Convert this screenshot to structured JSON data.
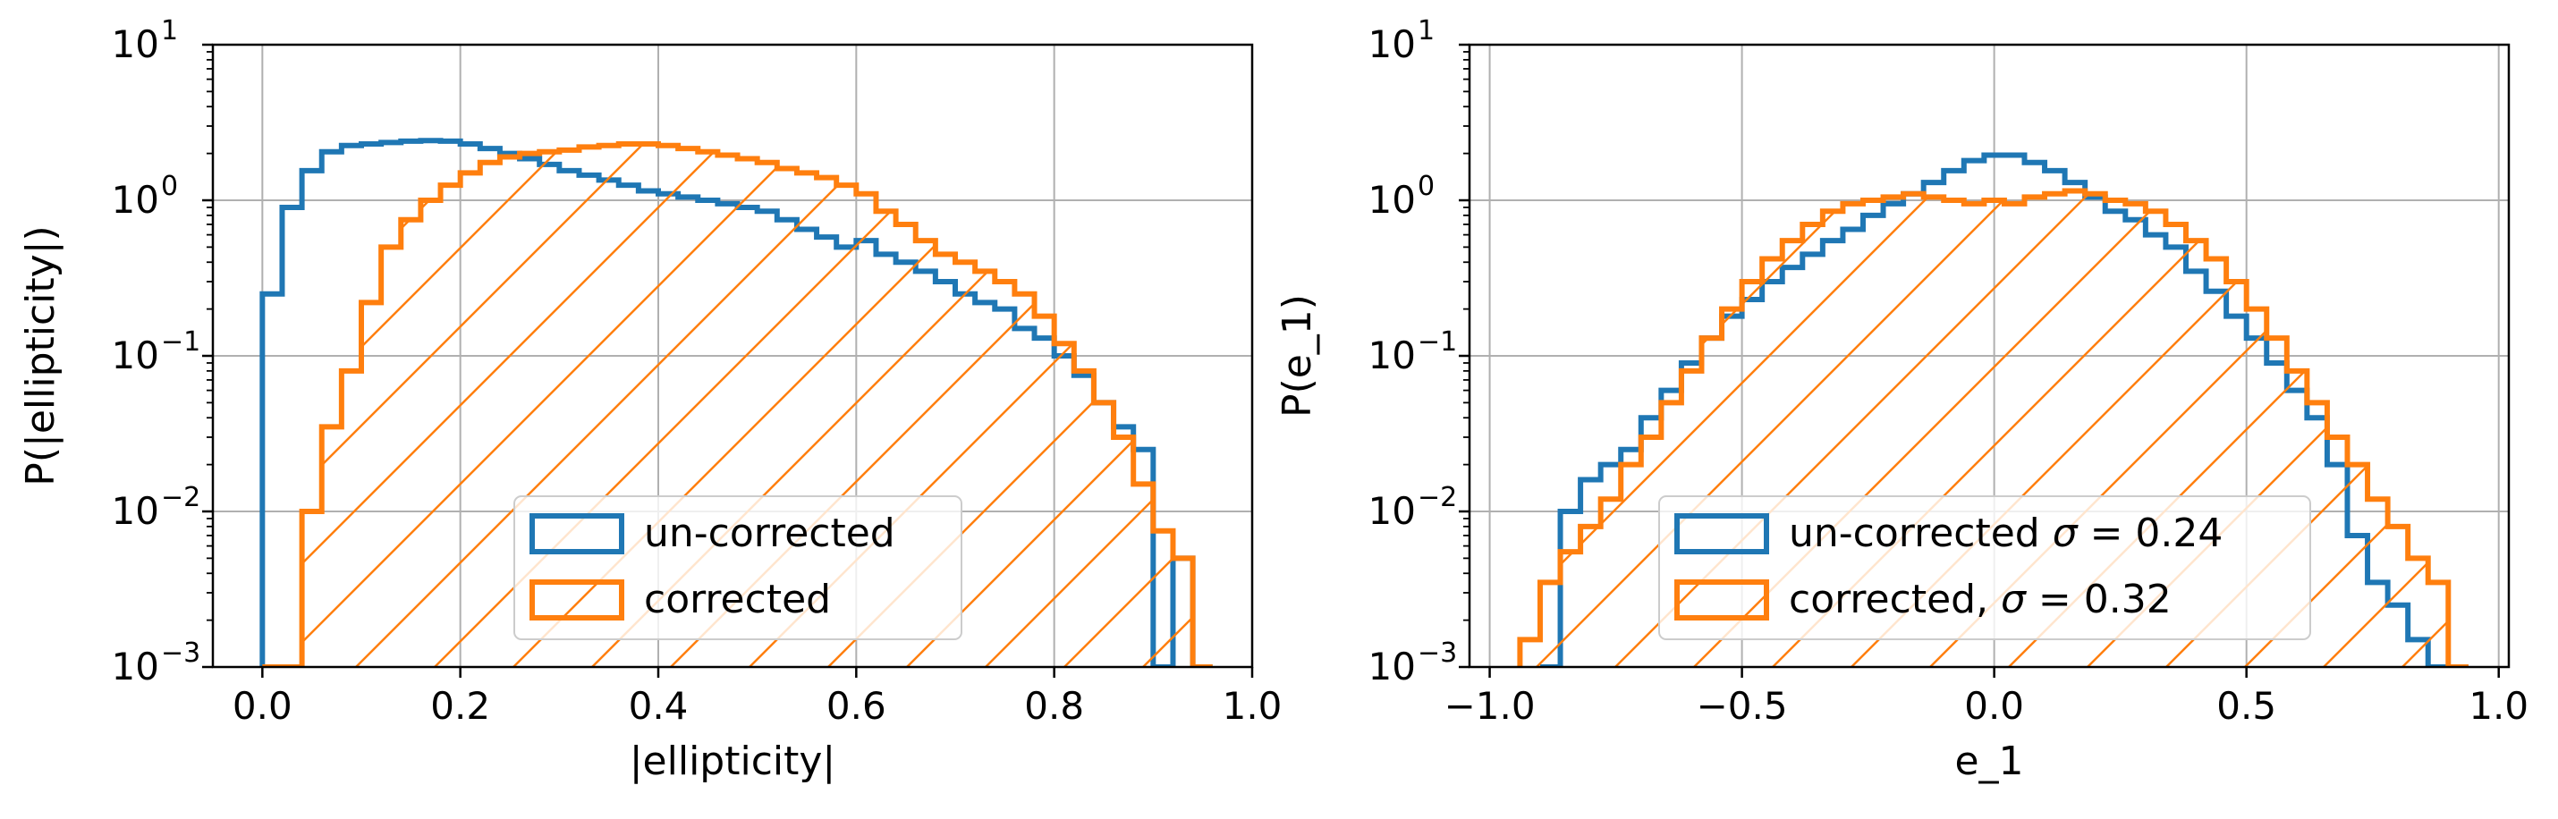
{
  "chart_data": [
    {
      "type": "histogram",
      "xlabel": "|ellipticity|",
      "ylabel": "P(|ellipticity|)",
      "xlim": [
        -0.05,
        1.0
      ],
      "ylim": [
        0.001,
        10
      ],
      "yscale": "log",
      "grid": true,
      "legend_position": "lower-center",
      "xticks": [
        0.0,
        0.2,
        0.4,
        0.6,
        0.8,
        1.0
      ],
      "xtick_labels": [
        "0.0",
        "0.2",
        "0.4",
        "0.6",
        "0.8",
        "1.0"
      ],
      "yticks": [
        0.001,
        0.01,
        0.1,
        1,
        10
      ],
      "ytick_labels": [
        {
          "base": "10",
          "exp": "−3"
        },
        {
          "base": "10",
          "exp": "−2"
        },
        {
          "base": "10",
          "exp": "−1"
        },
        {
          "base": "10",
          "exp": "0"
        },
        {
          "base": "10",
          "exp": "1"
        }
      ],
      "series": [
        {
          "name": "un-corrected",
          "color": "#1f77b4",
          "hatch": false,
          "bin_edges": [
            0.0,
            0.02,
            0.04,
            0.06,
            0.08,
            0.1,
            0.12,
            0.14,
            0.16,
            0.18,
            0.2,
            0.22,
            0.24,
            0.26,
            0.28,
            0.3,
            0.32,
            0.34,
            0.36,
            0.38,
            0.4,
            0.42,
            0.44,
            0.46,
            0.48,
            0.5,
            0.52,
            0.54,
            0.56,
            0.58,
            0.6,
            0.62,
            0.64,
            0.66,
            0.68,
            0.7,
            0.72,
            0.74,
            0.76,
            0.78,
            0.8,
            0.82,
            0.84,
            0.86,
            0.88,
            0.9,
            0.92,
            0.94,
            0.96
          ],
          "values": [
            0.25,
            0.9,
            1.55,
            2.05,
            2.25,
            2.3,
            2.35,
            2.4,
            2.42,
            2.4,
            2.3,
            2.15,
            2.0,
            1.85,
            1.7,
            1.55,
            1.45,
            1.35,
            1.25,
            1.15,
            1.1,
            1.05,
            1.0,
            0.95,
            0.9,
            0.85,
            0.75,
            0.65,
            0.58,
            0.5,
            0.55,
            0.45,
            0.4,
            0.35,
            0.3,
            0.25,
            0.22,
            0.2,
            0.15,
            0.13,
            0.1,
            0.075,
            0.05,
            0.035,
            0.025,
            0.001,
            0.005,
            0.001
          ]
        },
        {
          "name": "corrected",
          "color": "#ff7f0e",
          "hatch": true,
          "bin_edges": [
            0.0,
            0.02,
            0.04,
            0.06,
            0.08,
            0.1,
            0.12,
            0.14,
            0.16,
            0.18,
            0.2,
            0.22,
            0.24,
            0.26,
            0.28,
            0.3,
            0.32,
            0.34,
            0.36,
            0.38,
            0.4,
            0.42,
            0.44,
            0.46,
            0.48,
            0.5,
            0.52,
            0.54,
            0.56,
            0.58,
            0.6,
            0.62,
            0.64,
            0.66,
            0.68,
            0.7,
            0.72,
            0.74,
            0.76,
            0.78,
            0.8,
            0.82,
            0.84,
            0.86,
            0.88,
            0.9,
            0.92,
            0.94,
            0.96
          ],
          "values": [
            0.001,
            0.001,
            0.01,
            0.035,
            0.08,
            0.22,
            0.5,
            0.75,
            1.0,
            1.25,
            1.5,
            1.75,
            1.9,
            2.0,
            2.05,
            2.1,
            2.2,
            2.25,
            2.3,
            2.3,
            2.25,
            2.15,
            2.05,
            1.95,
            1.85,
            1.75,
            1.6,
            1.5,
            1.4,
            1.25,
            1.1,
            0.85,
            0.7,
            0.55,
            0.45,
            0.4,
            0.35,
            0.3,
            0.25,
            0.18,
            0.12,
            0.08,
            0.05,
            0.03,
            0.015,
            0.0075,
            0.005,
            0.001
          ]
        }
      ]
    },
    {
      "type": "histogram",
      "xlabel": "e_1",
      "ylabel": "P(e_1)",
      "xlim": [
        -1.04,
        1.02
      ],
      "ylim": [
        0.001,
        10
      ],
      "yscale": "log",
      "grid": true,
      "legend_position": "lower-center",
      "xticks": [
        -1.0,
        -0.5,
        0.0,
        0.5,
        1.0
      ],
      "xtick_labels": [
        "−1.0",
        "−0.5",
        "0.0",
        "0.5",
        "1.0"
      ],
      "yticks": [
        0.001,
        0.01,
        0.1,
        1,
        10
      ],
      "ytick_labels": [
        {
          "base": "10",
          "exp": "−3"
        },
        {
          "base": "10",
          "exp": "−2"
        },
        {
          "base": "10",
          "exp": "−1"
        },
        {
          "base": "10",
          "exp": "0"
        },
        {
          "base": "10",
          "exp": "1"
        }
      ],
      "series": [
        {
          "name": "un-corrected σ = 0.24",
          "label_parts": [
            "un-corrected ",
            "σ",
            " = 0.24"
          ],
          "color": "#1f77b4",
          "hatch": false,
          "bin_edges": [
            -0.9,
            -0.86,
            -0.82,
            -0.78,
            -0.74,
            -0.7,
            -0.66,
            -0.62,
            -0.58,
            -0.54,
            -0.5,
            -0.46,
            -0.42,
            -0.38,
            -0.34,
            -0.3,
            -0.26,
            -0.22,
            -0.18,
            -0.14,
            -0.1,
            -0.06,
            -0.02,
            0.02,
            0.06,
            0.1,
            0.14,
            0.18,
            0.22,
            0.26,
            0.3,
            0.34,
            0.38,
            0.42,
            0.46,
            0.5,
            0.54,
            0.58,
            0.62,
            0.66,
            0.7,
            0.74,
            0.78,
            0.82,
            0.86,
            0.9,
            0.94
          ],
          "values": [
            0.001,
            0.01,
            0.016,
            0.02,
            0.025,
            0.04,
            0.06,
            0.09,
            0.13,
            0.18,
            0.23,
            0.3,
            0.37,
            0.45,
            0.55,
            0.65,
            0.8,
            0.95,
            1.1,
            1.3,
            1.55,
            1.8,
            1.95,
            1.95,
            1.75,
            1.55,
            1.3,
            1.05,
            0.85,
            0.75,
            0.6,
            0.5,
            0.35,
            0.26,
            0.18,
            0.13,
            0.09,
            0.06,
            0.04,
            0.02,
            0.007,
            0.0035,
            0.0025,
            0.0015,
            0.001,
            0.001
          ]
        },
        {
          "name": "corrected, σ = 0.32",
          "label_parts": [
            "corrected, ",
            "σ",
            " = 0.32"
          ],
          "color": "#ff7f0e",
          "hatch": true,
          "bin_edges": [
            -0.94,
            -0.9,
            -0.86,
            -0.82,
            -0.78,
            -0.74,
            -0.7,
            -0.66,
            -0.62,
            -0.58,
            -0.54,
            -0.5,
            -0.46,
            -0.42,
            -0.38,
            -0.34,
            -0.3,
            -0.26,
            -0.22,
            -0.18,
            -0.14,
            -0.1,
            -0.06,
            -0.02,
            0.02,
            0.06,
            0.1,
            0.14,
            0.18,
            0.22,
            0.26,
            0.3,
            0.34,
            0.38,
            0.42,
            0.46,
            0.5,
            0.54,
            0.58,
            0.62,
            0.66,
            0.7,
            0.74,
            0.78,
            0.82,
            0.86,
            0.9,
            0.94
          ],
          "values": [
            0.0015,
            0.0035,
            0.0055,
            0.008,
            0.012,
            0.02,
            0.03,
            0.05,
            0.08,
            0.13,
            0.2,
            0.3,
            0.42,
            0.55,
            0.7,
            0.85,
            0.95,
            1.0,
            1.05,
            1.1,
            1.05,
            1.0,
            0.95,
            1.0,
            0.95,
            1.05,
            1.1,
            1.15,
            1.1,
            1.0,
            0.95,
            0.85,
            0.7,
            0.55,
            0.42,
            0.3,
            0.2,
            0.13,
            0.08,
            0.05,
            0.03,
            0.02,
            0.012,
            0.008,
            0.005,
            0.0035,
            0.001
          ]
        }
      ]
    }
  ]
}
